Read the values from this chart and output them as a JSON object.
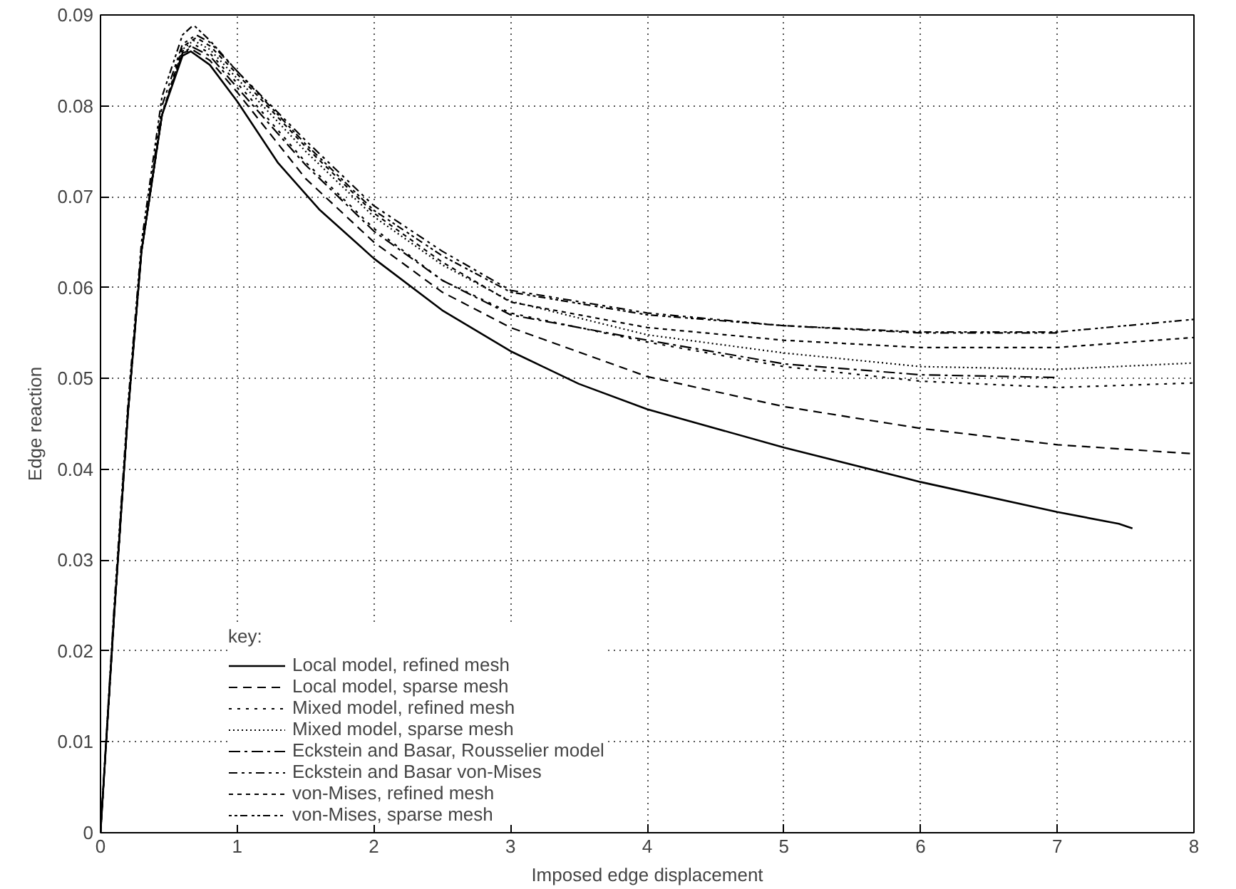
{
  "chart_data": {
    "type": "line",
    "xlabel": "Imposed edge displacement",
    "ylabel": "Edge reaction",
    "legend_title": "key:",
    "legend": "bottom",
    "grid": true,
    "xlim": [
      0,
      8
    ],
    "xticks": [
      0,
      1,
      2,
      3,
      4,
      5,
      6,
      7,
      8
    ],
    "ylim": [
      0,
      0.09
    ],
    "yticks": [
      0,
      0.01,
      0.02,
      0.03,
      0.04,
      0.05,
      0.06,
      0.07,
      0.08,
      0.09
    ],
    "series": [
      {
        "name": "Local model, refined mesh",
        "color": "#000000",
        "line_style": "solid",
        "x": [
          0,
          0.1,
          0.2,
          0.3,
          0.45,
          0.6,
          0.66,
          0.8,
          1,
          1.3,
          1.6,
          2,
          2.5,
          3,
          3.5,
          4,
          5,
          6,
          7,
          7.45,
          7.55
        ],
        "values": [
          0,
          0.024,
          0.046,
          0.064,
          0.079,
          0.0855,
          0.086,
          0.0845,
          0.0805,
          0.0737,
          0.0686,
          0.0632,
          0.0575,
          0.053,
          0.0494,
          0.0466,
          0.0424,
          0.0386,
          0.0353,
          0.034,
          0.0335
        ]
      },
      {
        "name": "Local model, sparse mesh",
        "color": "#000000",
        "line_style": "dashed",
        "x": [
          0,
          0.1,
          0.2,
          0.3,
          0.45,
          0.6,
          0.67,
          0.8,
          1,
          1.5,
          2,
          2.5,
          3,
          4,
          5,
          6,
          7,
          8
        ],
        "values": [
          0,
          0.024,
          0.046,
          0.064,
          0.079,
          0.0858,
          0.0862,
          0.085,
          0.0815,
          0.072,
          0.065,
          0.0595,
          0.0556,
          0.0502,
          0.0469,
          0.0445,
          0.0427,
          0.0417
        ]
      },
      {
        "name": "Mixed model, refined mesh",
        "color": "#000000",
        "line_style": "dotted",
        "x": [
          0,
          0.1,
          0.2,
          0.3,
          0.45,
          0.6,
          0.68,
          0.8,
          1,
          1.5,
          2,
          2.5,
          3,
          4,
          5,
          6,
          7,
          8
        ],
        "values": [
          0,
          0.024,
          0.046,
          0.064,
          0.079,
          0.086,
          0.0868,
          0.0858,
          0.0825,
          0.0738,
          0.0665,
          0.0608,
          0.0572,
          0.054,
          0.0513,
          0.0497,
          0.049,
          0.0495
        ]
      },
      {
        "name": "Mixed model, sparse mesh",
        "color": "#000000",
        "line_style": "finedotted",
        "x": [
          0,
          0.1,
          0.2,
          0.3,
          0.45,
          0.6,
          0.68,
          0.8,
          1,
          1.5,
          2,
          2.5,
          3,
          4,
          5,
          6,
          7,
          8
        ],
        "values": [
          0,
          0.024,
          0.046,
          0.064,
          0.079,
          0.0862,
          0.0872,
          0.0862,
          0.083,
          0.075,
          0.0678,
          0.0625,
          0.0585,
          0.0548,
          0.0528,
          0.0513,
          0.051,
          0.0517
        ]
      },
      {
        "name": "Eckstein and Basar, Rousselier model",
        "color": "#000000",
        "line_style": "dashdot",
        "x": [
          0,
          0.1,
          0.2,
          0.3,
          0.45,
          0.6,
          0.67,
          0.8,
          1,
          1.5,
          2,
          2.5,
          3,
          4,
          5,
          6,
          7
        ],
        "values": [
          0,
          0.024,
          0.046,
          0.064,
          0.079,
          0.0858,
          0.0865,
          0.0855,
          0.082,
          0.0735,
          0.0662,
          0.0608,
          0.057,
          0.0542,
          0.0516,
          0.0504,
          0.0501
        ]
      },
      {
        "name": "Eckstein and Basar von-Mises",
        "color": "#000000",
        "line_style": "dashdotdot",
        "x": [
          0,
          0.1,
          0.2,
          0.3,
          0.45,
          0.6,
          0.7,
          0.8,
          1,
          1.5,
          2,
          2.5,
          3,
          4,
          5,
          6,
          7
        ],
        "values": [
          0,
          0.024,
          0.046,
          0.064,
          0.08,
          0.0868,
          0.0878,
          0.087,
          0.0838,
          0.0762,
          0.069,
          0.064,
          0.0597,
          0.0572,
          0.0558,
          0.055,
          0.055
        ]
      },
      {
        "name": "von-Mises, refined mesh",
        "color": "#000000",
        "line_style": "shortdashed",
        "x": [
          0,
          0.1,
          0.2,
          0.3,
          0.45,
          0.6,
          0.7,
          0.8,
          1,
          1.5,
          2,
          2.5,
          3,
          4,
          5,
          6,
          7,
          8
        ],
        "values": [
          0,
          0.024,
          0.046,
          0.064,
          0.079,
          0.0865,
          0.0875,
          0.0866,
          0.0835,
          0.0755,
          0.0682,
          0.0628,
          0.0584,
          0.0556,
          0.0542,
          0.0534,
          0.0534,
          0.0545
        ]
      },
      {
        "name": "von-Mises, sparse mesh",
        "color": "#000000",
        "line_style": "dotdash",
        "x": [
          0,
          0.1,
          0.2,
          0.3,
          0.45,
          0.6,
          0.68,
          0.8,
          1,
          1.5,
          2,
          2.5,
          3,
          4,
          5,
          6,
          7,
          8
        ],
        "values": [
          0,
          0.025,
          0.047,
          0.065,
          0.081,
          0.0878,
          0.0889,
          0.0872,
          0.0838,
          0.0758,
          0.0685,
          0.0635,
          0.0595,
          0.057,
          0.0558,
          0.0551,
          0.0551,
          0.0565
        ]
      }
    ]
  }
}
